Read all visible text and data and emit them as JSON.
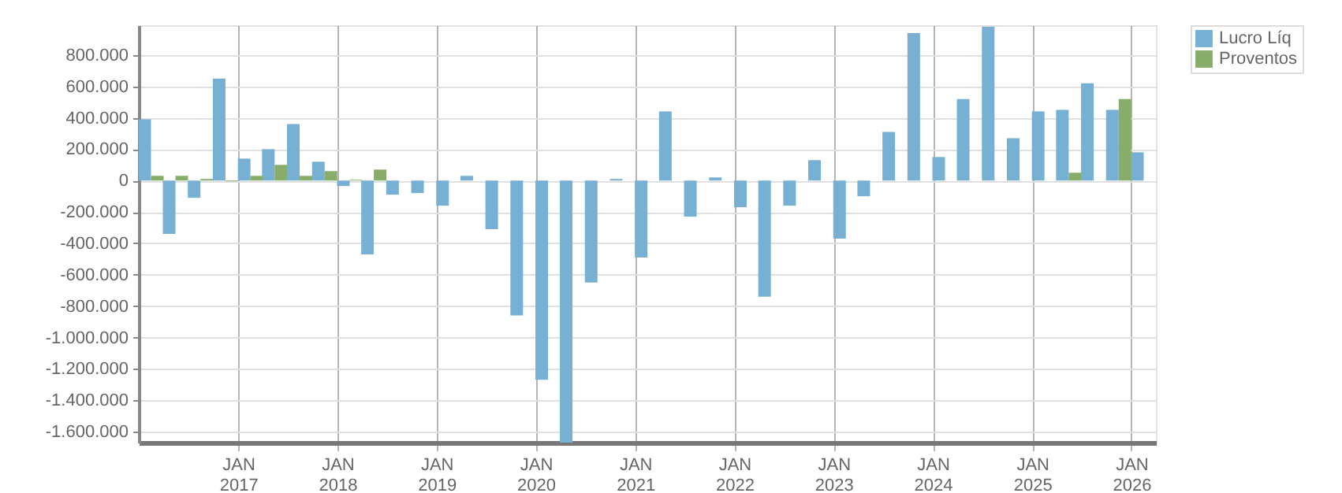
{
  "chart_data": {
    "type": "bar",
    "x": [
      "2016-02-15",
      "2016-05-15",
      "2016-08-15",
      "2016-11-15",
      "2017-02-15",
      "2017-05-15",
      "2017-08-15",
      "2017-11-15",
      "2018-02-15",
      "2018-05-15",
      "2018-08-15",
      "2018-11-15",
      "2019-02-15",
      "2019-05-15",
      "2019-08-15",
      "2019-11-15",
      "2020-02-15",
      "2020-05-15",
      "2020-08-15",
      "2020-11-15",
      "2021-02-15",
      "2021-05-15",
      "2021-08-15",
      "2021-11-15",
      "2022-02-15",
      "2022-05-15",
      "2022-08-15",
      "2022-11-15",
      "2023-02-15",
      "2023-05-15",
      "2023-08-15",
      "2023-11-15",
      "2024-02-15",
      "2024-05-15",
      "2024-08-15",
      "2024-11-15",
      "2025-02-15",
      "2025-05-15",
      "2025-08-15",
      "2025-11-15",
      "2026-02-15"
    ],
    "series": [
      {
        "name": "Lucro Líq",
        "color": "#77b0d3",
        "values": [
          390000,
          -340000,
          -110000,
          650000,
          140000,
          200000,
          360000,
          120000,
          -35000,
          -470000,
          -90000,
          -80000,
          -160000,
          30000,
          -310000,
          -860000,
          -1270000,
          -1670000,
          -650000,
          10000,
          -490000,
          440000,
          -230000,
          20000,
          -170000,
          -740000,
          -160000,
          130000,
          -370000,
          -100000,
          310000,
          940000,
          150000,
          520000,
          980000,
          270000,
          440000,
          450000,
          620000,
          450000,
          180000
        ]
      },
      {
        "name": "Proventos",
        "color": "#88ad6a",
        "values": [
          30000,
          30000,
          10000,
          -5000,
          30000,
          100000,
          30000,
          60000,
          5000,
          70000,
          0,
          0,
          0,
          0,
          0,
          0,
          0,
          0,
          0,
          0,
          0,
          0,
          0,
          0,
          0,
          0,
          0,
          0,
          0,
          0,
          0,
          0,
          0,
          0,
          0,
          0,
          0,
          50000,
          0,
          520000,
          0
        ]
      }
    ],
    "xlim": [
      "2016-01-01",
      "2026-04-01"
    ],
    "xticks": [
      {
        "value": "2017-01-01",
        "label": "JAN 2017"
      },
      {
        "value": "2018-01-01",
        "label": "JAN 2018"
      },
      {
        "value": "2019-01-01",
        "label": "JAN 2019"
      },
      {
        "value": "2020-01-01",
        "label": "JAN 2020"
      },
      {
        "value": "2021-01-01",
        "label": "JAN 2021"
      },
      {
        "value": "2022-01-01",
        "label": "JAN 2022"
      },
      {
        "value": "2023-01-01",
        "label": "JAN 2023"
      },
      {
        "value": "2024-01-01",
        "label": "JAN 2024"
      },
      {
        "value": "2025-01-01",
        "label": "JAN 2025"
      },
      {
        "value": "2026-01-01",
        "label": "JAN 2026"
      }
    ],
    "ylim": [
      -1670000,
      990000
    ],
    "yticks": [
      {
        "value": -1600000,
        "label": "-1.600.000"
      },
      {
        "value": -1400000,
        "label": "-1.400.000"
      },
      {
        "value": -1200000,
        "label": "-1.200.000"
      },
      {
        "value": -1000000,
        "label": "-1.000.000"
      },
      {
        "value": -800000,
        "label": "-800.000"
      },
      {
        "value": -600000,
        "label": "-600.000"
      },
      {
        "value": -400000,
        "label": "-400.000"
      },
      {
        "value": -200000,
        "label": "-200.000"
      },
      0,
      {
        "value": 200000,
        "label": "200.000"
      },
      {
        "value": 400000,
        "label": "400.000"
      },
      {
        "value": 600000,
        "label": "600.000"
      },
      {
        "value": 800000,
        "label": "800.000"
      }
    ],
    "grid": true,
    "legend": "top right"
  }
}
